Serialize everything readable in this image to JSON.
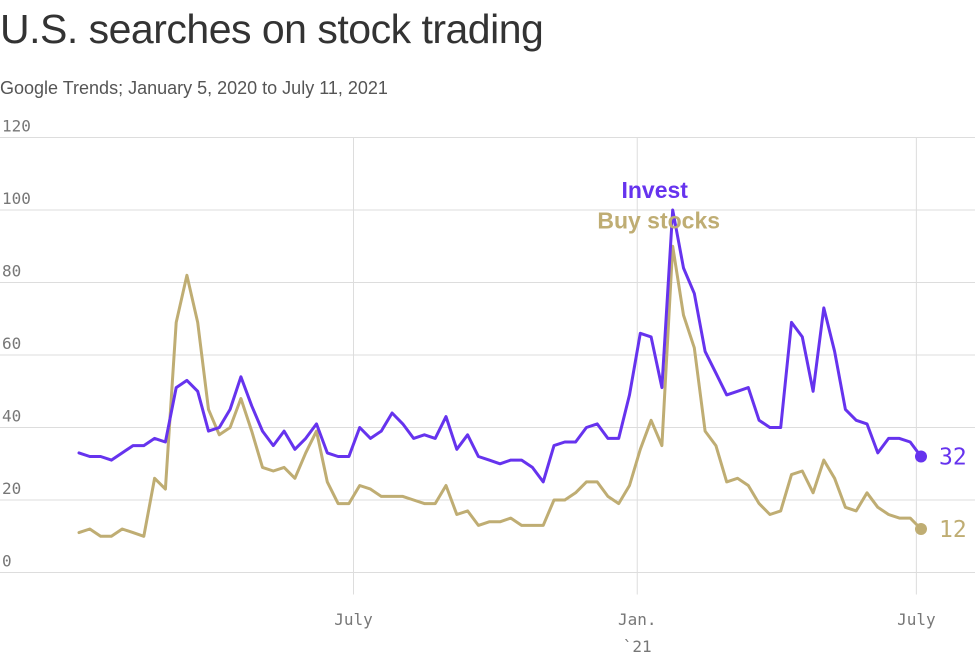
{
  "title": "U.S. searches on stock trading",
  "subtitle": "Google Trends; January 5, 2020 to July 11, 2021",
  "colors": {
    "invest": "#6633ee",
    "buy_stocks": "#bfad73",
    "grid": "#dddddd",
    "axis_text": "#777777"
  },
  "chart_data": {
    "type": "line",
    "title": "U.S. searches on stock trading",
    "subtitle": "Google Trends; January 5, 2020 to July 11, 2021",
    "x_start": "2020-01-05",
    "x_end": "2021-07-11",
    "x_interval": "weekly",
    "ylim": [
      0,
      120
    ],
    "y_ticks": [
      "0",
      "20",
      "40",
      "60",
      "80",
      "100",
      "120"
    ],
    "x_ticks": [
      {
        "label": "July",
        "sublabel": "",
        "date": "2020-07-01"
      },
      {
        "label": "Jan.",
        "sublabel": "`21",
        "date": "2021-01-01"
      },
      {
        "label": "July",
        "sublabel": "",
        "date": "2021-07-01"
      }
    ],
    "grid": true,
    "series": [
      {
        "name": "Invest",
        "end_label": "32",
        "values": [
          33,
          32,
          32,
          31,
          33,
          35,
          35,
          37,
          36,
          51,
          53,
          50,
          39,
          40,
          45,
          54,
          46,
          39,
          35,
          39,
          34,
          37,
          41,
          33,
          32,
          32,
          40,
          37,
          39,
          44,
          41,
          37,
          38,
          37,
          43,
          34,
          38,
          32,
          31,
          30,
          31,
          31,
          29,
          25,
          35,
          36,
          36,
          40,
          41,
          37,
          37,
          49,
          66,
          65,
          51,
          100,
          84,
          77,
          61,
          55,
          49,
          50,
          51,
          42,
          40,
          40,
          69,
          65,
          50,
          73,
          61,
          45,
          42,
          41,
          33,
          37,
          37,
          36,
          32
        ]
      },
      {
        "name": "Buy stocks",
        "end_label": "12",
        "values": [
          11,
          12,
          10,
          10,
          12,
          11,
          10,
          26,
          23,
          69,
          82,
          69,
          45,
          38,
          40,
          48,
          39,
          29,
          28,
          29,
          26,
          33,
          39,
          25,
          19,
          19,
          24,
          23,
          21,
          21,
          21,
          20,
          19,
          19,
          24,
          16,
          17,
          13,
          14,
          14,
          15,
          13,
          13,
          13,
          20,
          20,
          22,
          25,
          25,
          21,
          19,
          24,
          34,
          42,
          35,
          90,
          71,
          62,
          39,
          35,
          25,
          26,
          24,
          19,
          16,
          17,
          27,
          28,
          22,
          31,
          26,
          18,
          17,
          22,
          18,
          16,
          15,
          15,
          12
        ]
      }
    ]
  }
}
